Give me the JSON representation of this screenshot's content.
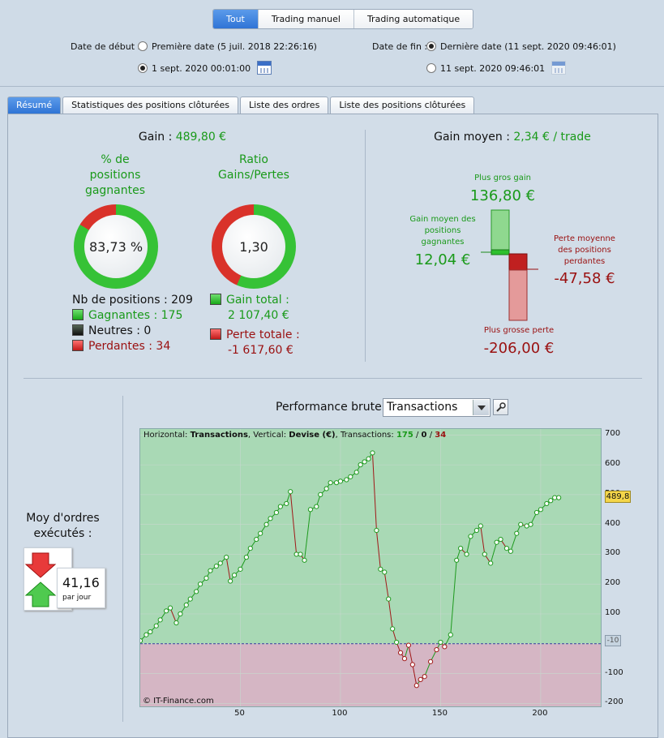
{
  "segmented": [
    "Tout",
    "Trading manuel",
    "Trading automatique"
  ],
  "dates": {
    "start_label": "Date de début :",
    "start_first": "Première date (5 juil. 2018 22:26:16)",
    "start_custom": "1 sept. 2020 00:01:00",
    "end_label": "Date de fin :",
    "end_last": "Dernière date (11 sept. 2020 09:46:01)",
    "end_custom": "11 sept. 2020 09:46:01"
  },
  "tabs": [
    "Résumé",
    "Statistiques des positions clôturées",
    "Liste des ordres",
    "Liste des positions clôturées"
  ],
  "summary": {
    "gain_label": "Gain :",
    "gain_value": "489,80 €",
    "pct_title": "% de\npositions\ngagnantes",
    "pct_value": "83,73 %",
    "pct_win_fraction": 0.8373,
    "ratio_title": "Ratio\nGains/Pertes",
    "ratio_value": "1,30",
    "ratio_win_fraction": 0.5658,
    "nb_label": "Nb de positions : 209",
    "gagnantes": "Gagnantes : 175",
    "neutres": "Neutres : 0",
    "perdantes": "Perdantes : 34",
    "gain_total_label": "Gain total :",
    "gain_total": "2 107,40 €",
    "perte_totale_label": "Perte totale :",
    "perte_totale": "-1 617,60 €"
  },
  "gain_moyen": {
    "label": "Gain moyen :",
    "value": "2,34 € / trade",
    "plus_gros_gain_label": "Plus gros gain",
    "plus_gros_gain": "136,80 €",
    "gain_moyen_pos_label": "Gain moyen des\npositions\ngagnantes",
    "gain_moyen_pos": "12,04 €",
    "perte_moyenne_label": "Perte moyenne\ndes positions\nperdantes",
    "perte_moyenne": "-47,58 €",
    "plus_grosse_perte_label": "Plus grosse perte",
    "plus_grosse_perte": "-206,00 €"
  },
  "orders": {
    "title": "Moy d'ordres\nexécutés :",
    "value": "41,16",
    "unit": "par jour"
  },
  "perf": {
    "title": "Performance brute",
    "select": "Transactions"
  },
  "chart_data": {
    "type": "line",
    "header_prefix": "Horizontal: ",
    "header_h": "Transactions",
    "header_mid": ", Vertical: ",
    "header_v": "Devise (€)",
    "header_tx": ", Transactions: ",
    "tx_win": "175",
    "tx_neutral": "0",
    "tx_loss": "34",
    "copyright": "© IT-Finance.com",
    "xlim": [
      0,
      230
    ],
    "ylim": [
      -210,
      720
    ],
    "x_ticks": [
      "50",
      "100",
      "150",
      "200"
    ],
    "x_tick_values": [
      50,
      100,
      150,
      200
    ],
    "y_ticks": [
      "700",
      "600",
      "500",
      "400",
      "300",
      "200",
      "100",
      "0",
      "-100",
      "-200"
    ],
    "y_tick_values": [
      700,
      600,
      500,
      400,
      300,
      200,
      100,
      0,
      -100,
      -200
    ],
    "last_value": "489,8",
    "last_y": 489.8,
    "zero_marker": "-10",
    "x": [
      0,
      3,
      5,
      8,
      10,
      13,
      15,
      18,
      20,
      23,
      25,
      28,
      30,
      33,
      35,
      38,
      40,
      43,
      45,
      47,
      50,
      53,
      55,
      58,
      60,
      63,
      65,
      68,
      70,
      73,
      75,
      78,
      80,
      82,
      85,
      88,
      90,
      93,
      95,
      98,
      100,
      103,
      105,
      108,
      110,
      112,
      114,
      116,
      118,
      120,
      122,
      124,
      126,
      128,
      130,
      132,
      134,
      136,
      138,
      140,
      142,
      145,
      148,
      150,
      152,
      155,
      158,
      160,
      163,
      165,
      168,
      170,
      172,
      175,
      178,
      180,
      183,
      185,
      188,
      190,
      193,
      195,
      198,
      200,
      203,
      205,
      207,
      209
    ],
    "y": [
      10,
      30,
      40,
      60,
      80,
      110,
      120,
      70,
      100,
      130,
      150,
      175,
      200,
      220,
      245,
      260,
      270,
      290,
      210,
      230,
      250,
      290,
      320,
      350,
      370,
      400,
      420,
      440,
      460,
      470,
      510,
      300,
      300,
      280,
      450,
      460,
      500,
      520,
      540,
      540,
      545,
      550,
      560,
      575,
      600,
      610,
      620,
      640,
      380,
      250,
      240,
      150,
      50,
      5,
      -30,
      -50,
      -5,
      -70,
      -140,
      -120,
      -110,
      -60,
      -20,
      5,
      -10,
      30,
      280,
      320,
      300,
      360,
      380,
      395,
      300,
      270,
      340,
      350,
      320,
      310,
      370,
      400,
      395,
      400,
      440,
      450,
      470,
      480,
      490,
      489.8
    ]
  }
}
